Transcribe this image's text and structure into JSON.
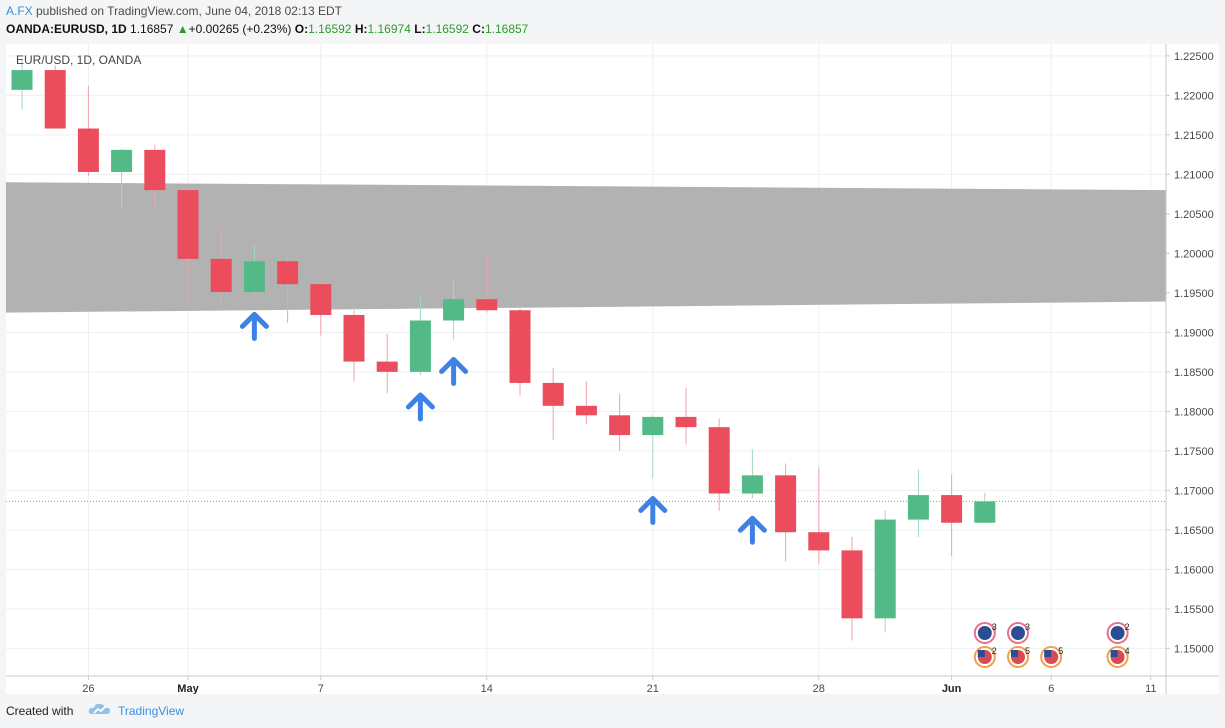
{
  "header": {
    "user": "A.FX",
    "published_text": " published on TradingView.com, June 04, 2018 02:13 EDT",
    "symbol": "OANDA:EURUSD, 1D",
    "last": "1.16857",
    "change_arrow": "▲",
    "change": "+0.00265 (+0.23%)",
    "o_label": "O:",
    "o_val": "1.16592",
    "h_label": "H:",
    "h_val": "1.16974",
    "l_label": "L:",
    "l_val": "1.16592",
    "c_label": "C:",
    "c_val": "1.16857"
  },
  "chart_data": {
    "type": "candlestick",
    "title": "EUR/USD, 1D, OANDA",
    "ylim": [
      1.1465,
      1.2265
    ],
    "y_ticks": [
      "1.22500",
      "1.22000",
      "1.21500",
      "1.21000",
      "1.20500",
      "1.20000",
      "1.19500",
      "1.19000",
      "1.18500",
      "1.18000",
      "1.17500",
      "1.17000",
      "1.16500",
      "1.16000",
      "1.15500",
      "1.15000"
    ],
    "x_ticks": [
      {
        "label": "26",
        "i": 2
      },
      {
        "label": "May",
        "i": 5
      },
      {
        "label": "7",
        "i": 9
      },
      {
        "label": "14",
        "i": 14
      },
      {
        "label": "21",
        "i": 19
      },
      {
        "label": "28",
        "i": 24
      },
      {
        "label": "Jun",
        "i": 28
      },
      {
        "label": "6",
        "i": 31
      },
      {
        "label": "11",
        "i": 34
      }
    ],
    "candles": [
      {
        "o": 1.2207,
        "h": 1.2245,
        "l": 1.2182,
        "c": 1.2232
      },
      {
        "o": 1.2232,
        "h": 1.2238,
        "l": 1.2158,
        "c": 1.2158
      },
      {
        "o": 1.2158,
        "h": 1.2212,
        "l": 1.2098,
        "c": 1.2103
      },
      {
        "o": 1.2103,
        "h": 1.2132,
        "l": 1.2056,
        "c": 1.2131
      },
      {
        "o": 1.2131,
        "h": 1.2137,
        "l": 1.206,
        "c": 1.208
      },
      {
        "o": 1.208,
        "h": 1.2082,
        "l": 1.194,
        "c": 1.1993
      },
      {
        "o": 1.1993,
        "h": 1.2032,
        "l": 1.1936,
        "c": 1.1951
      },
      {
        "o": 1.1951,
        "h": 1.201,
        "l": 1.1948,
        "c": 1.199
      },
      {
        "o": 1.199,
        "h": 1.1996,
        "l": 1.1912,
        "c": 1.1961
      },
      {
        "o": 1.1961,
        "h": 1.1963,
        "l": 1.1896,
        "c": 1.1922
      },
      {
        "o": 1.1922,
        "h": 1.1928,
        "l": 1.1838,
        "c": 1.1863
      },
      {
        "o": 1.1863,
        "h": 1.1898,
        "l": 1.1823,
        "c": 1.185
      },
      {
        "o": 1.185,
        "h": 1.1947,
        "l": 1.1846,
        "c": 1.1915
      },
      {
        "o": 1.1915,
        "h": 1.1968,
        "l": 1.1891,
        "c": 1.1942
      },
      {
        "o": 1.1942,
        "h": 1.1997,
        "l": 1.1925,
        "c": 1.1928
      },
      {
        "o": 1.1928,
        "h": 1.193,
        "l": 1.182,
        "c": 1.1836
      },
      {
        "o": 1.1836,
        "h": 1.1855,
        "l": 1.1764,
        "c": 1.1807
      },
      {
        "o": 1.1807,
        "h": 1.1838,
        "l": 1.1784,
        "c": 1.1795
      },
      {
        "o": 1.1795,
        "h": 1.1822,
        "l": 1.175,
        "c": 1.177
      },
      {
        "o": 1.177,
        "h": 1.1795,
        "l": 1.1715,
        "c": 1.1793
      },
      {
        "o": 1.1793,
        "h": 1.183,
        "l": 1.1758,
        "c": 1.178
      },
      {
        "o": 1.178,
        "h": 1.1791,
        "l": 1.1674,
        "c": 1.1696
      },
      {
        "o": 1.1696,
        "h": 1.1752,
        "l": 1.169,
        "c": 1.1719
      },
      {
        "o": 1.1719,
        "h": 1.1734,
        "l": 1.161,
        "c": 1.1647
      },
      {
        "o": 1.1647,
        "h": 1.1729,
        "l": 1.1607,
        "c": 1.1624
      },
      {
        "o": 1.1624,
        "h": 1.1641,
        "l": 1.151,
        "c": 1.1538
      },
      {
        "o": 1.1538,
        "h": 1.1675,
        "l": 1.152,
        "c": 1.1663
      },
      {
        "o": 1.1663,
        "h": 1.1726,
        "l": 1.1641,
        "c": 1.1694
      },
      {
        "o": 1.1694,
        "h": 1.172,
        "l": 1.1617,
        "c": 1.1659
      },
      {
        "o": 1.1659,
        "h": 1.1697,
        "l": 1.1659,
        "c": 1.1686
      }
    ],
    "zone": {
      "y_left_top": 1.209,
      "y_left_bottom": 1.1925,
      "y_right_top": 1.208,
      "y_right_bottom": 1.1939
    },
    "dotted_price": 1.1686,
    "up_arrows_at": [
      7,
      12,
      13,
      19,
      22
    ],
    "events_top": [
      {
        "i": 29,
        "n": "3"
      },
      {
        "i": 30,
        "n": "3"
      },
      {
        "i": 33,
        "n": "2"
      }
    ],
    "events_bottom": [
      {
        "i": 29,
        "n": "2"
      },
      {
        "i": 30,
        "n": "5"
      },
      {
        "i": 31,
        "n": "5"
      },
      {
        "i": 33,
        "n": "4"
      }
    ],
    "colors": {
      "up": "#53b987",
      "down": "#eb4d5c",
      "zone": "#b2b2b2",
      "arrow": "#3c82e6",
      "grid": "#edf0f3",
      "axis_text": "#4a4a4a",
      "dotted": "#53b987"
    }
  },
  "footer": {
    "created": "Created with",
    "brand": "TradingView"
  }
}
